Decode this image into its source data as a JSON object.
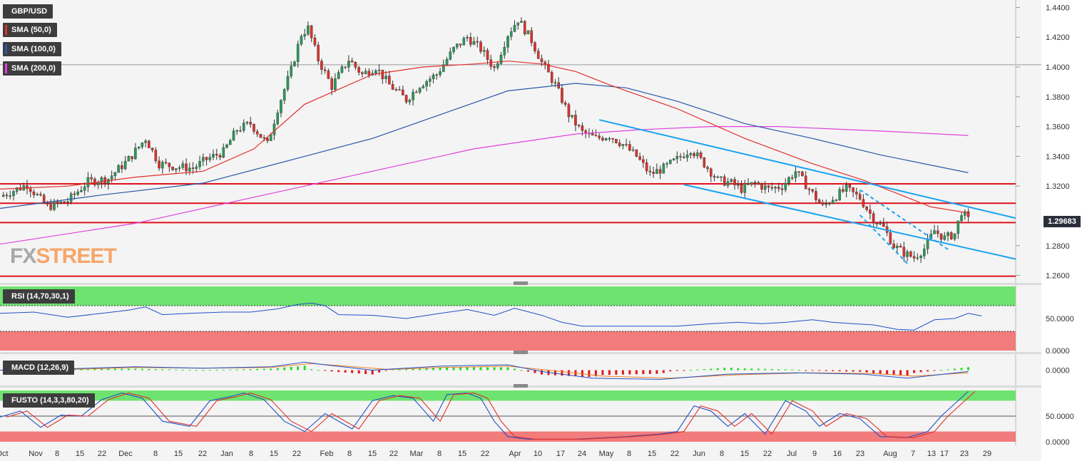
{
  "instrument": "GBP/USD",
  "price_tag": "1.29683",
  "logo": {
    "part1": "FX",
    "part2": "STREET"
  },
  "legend": [
    {
      "label": "GBP/USD",
      "color": "#3d3d3d"
    },
    {
      "label": "SMA (50,0)",
      "color": "#e0302a"
    },
    {
      "label": "SMA (100,0)",
      "color": "#2857a8"
    },
    {
      "label": "SMA (200,0)",
      "color": "#e040e0"
    }
  ],
  "panels": {
    "rsi": {
      "label": "RSI (14,70,30,1)",
      "ticks": [
        "50.0000",
        "0.0000"
      ]
    },
    "macd": {
      "label": "MACD (12,26,9)",
      "ticks": [
        "0.0000"
      ]
    },
    "fusto": {
      "label": "FUSTO (14,3,3,80,20)",
      "ticks": [
        "50.0000",
        "0.0000"
      ]
    }
  },
  "chart_data": {
    "type": "candlestick",
    "ylim": [
      1.255,
      1.445
    ],
    "price_ticks": [
      "1.4400",
      "1.4200",
      "1.4000",
      "1.3800",
      "1.3600",
      "1.3400",
      "1.3200",
      "1.2800",
      "1.2600"
    ],
    "x_tick_labels": [
      "Oct",
      "Nov",
      "8",
      "15",
      "22",
      "Dec",
      "8",
      "15",
      "22",
      "Jan",
      "8",
      "15",
      "22",
      "Feb",
      "8",
      "15",
      "22",
      "Mar",
      "8",
      "15",
      "22",
      "Apr",
      "10",
      "17",
      "24",
      "May",
      "8",
      "15",
      "22",
      "Jun",
      "8",
      "15",
      "22",
      "Jul",
      "9",
      "16",
      "23",
      "Aug",
      "7",
      "13",
      "17",
      "23",
      "29"
    ],
    "horizontal_levels": [
      1.3215,
      1.3085,
      1.2955,
      1.2595
    ],
    "close_path": [
      [
        0,
        1.313
      ],
      [
        8,
        1.321
      ],
      [
        14,
        1.306
      ],
      [
        20,
        1.31
      ],
      [
        26,
        1.323
      ],
      [
        32,
        1.325
      ],
      [
        38,
        1.338
      ],
      [
        43,
        1.352
      ],
      [
        47,
        1.335
      ],
      [
        52,
        1.333
      ],
      [
        57,
        1.332
      ],
      [
        61,
        1.338
      ],
      [
        66,
        1.343
      ],
      [
        70,
        1.358
      ],
      [
        74,
        1.362
      ],
      [
        79,
        1.348
      ],
      [
        82,
        1.372
      ],
      [
        86,
        1.398
      ],
      [
        89,
        1.422
      ],
      [
        91,
        1.426
      ],
      [
        94,
        1.405
      ],
      [
        98,
        1.387
      ],
      [
        103,
        1.405
      ],
      [
        107,
        1.395
      ],
      [
        111,
        1.4
      ],
      [
        115,
        1.388
      ],
      [
        120,
        1.378
      ],
      [
        124,
        1.388
      ],
      [
        129,
        1.395
      ],
      [
        134,
        1.412
      ],
      [
        138,
        1.42
      ],
      [
        142,
        1.412
      ],
      [
        146,
        1.399
      ],
      [
        150,
        1.422
      ],
      [
        153,
        1.432
      ],
      [
        157,
        1.418
      ],
      [
        160,
        1.403
      ],
      [
        164,
        1.388
      ],
      [
        168,
        1.368
      ],
      [
        172,
        1.356
      ],
      [
        176,
        1.352
      ],
      [
        180,
        1.354
      ],
      [
        184,
        1.348
      ],
      [
        188,
        1.34
      ],
      [
        192,
        1.328
      ],
      [
        196,
        1.332
      ],
      [
        200,
        1.338
      ],
      [
        204,
        1.345
      ],
      [
        208,
        1.335
      ],
      [
        212,
        1.324
      ],
      [
        216,
        1.322
      ],
      [
        219,
        1.318
      ],
      [
        223,
        1.322
      ],
      [
        227,
        1.318
      ],
      [
        231,
        1.32
      ],
      [
        235,
        1.33
      ],
      [
        239,
        1.318
      ],
      [
        243,
        1.306
      ],
      [
        246,
        1.312
      ],
      [
        250,
        1.318
      ],
      [
        254,
        1.312
      ],
      [
        258,
        1.298
      ],
      [
        261,
        1.292
      ],
      [
        264,
        1.28
      ],
      [
        267,
        1.275
      ],
      [
        270,
        1.272
      ],
      [
        273,
        1.278
      ],
      [
        276,
        1.29
      ],
      [
        279,
        1.285
      ],
      [
        282,
        1.288
      ],
      [
        284,
        1.303
      ],
      [
        286,
        1.297
      ]
    ],
    "sma50_path": [
      [
        0,
        1.318
      ],
      [
        20,
        1.32
      ],
      [
        40,
        1.326
      ],
      [
        60,
        1.33
      ],
      [
        75,
        1.345
      ],
      [
        90,
        1.375
      ],
      [
        110,
        1.395
      ],
      [
        125,
        1.4
      ],
      [
        140,
        1.402
      ],
      [
        150,
        1.404
      ],
      [
        160,
        1.402
      ],
      [
        170,
        1.397
      ],
      [
        180,
        1.388
      ],
      [
        200,
        1.372
      ],
      [
        220,
        1.352
      ],
      [
        240,
        1.335
      ],
      [
        255,
        1.324
      ],
      [
        265,
        1.315
      ],
      [
        275,
        1.306
      ],
      [
        286,
        1.302
      ]
    ],
    "sma100_path": [
      [
        0,
        1.305
      ],
      [
        30,
        1.314
      ],
      [
        60,
        1.322
      ],
      [
        90,
        1.34
      ],
      [
        110,
        1.352
      ],
      [
        130,
        1.368
      ],
      [
        150,
        1.384
      ],
      [
        170,
        1.389
      ],
      [
        185,
        1.386
      ],
      [
        200,
        1.377
      ],
      [
        220,
        1.362
      ],
      [
        240,
        1.352
      ],
      [
        260,
        1.341
      ],
      [
        286,
        1.329
      ]
    ],
    "sma200_path": [
      [
        0,
        1.281
      ],
      [
        40,
        1.295
      ],
      [
        80,
        1.315
      ],
      [
        110,
        1.33
      ],
      [
        140,
        1.345
      ],
      [
        170,
        1.355
      ],
      [
        190,
        1.358
      ],
      [
        210,
        1.36
      ],
      [
        230,
        1.36
      ],
      [
        260,
        1.357
      ],
      [
        286,
        1.354
      ]
    ],
    "channel_upper": [
      [
        177,
        1.3645
      ],
      [
        300,
        1.2985
      ]
    ],
    "channel_lower": [
      [
        202,
        1.321
      ],
      [
        300,
        1.271
      ]
    ],
    "short_channel_upper": [
      [
        254,
        1.3175
      ],
      [
        280,
        1.2775
      ]
    ],
    "short_channel_lower": [
      [
        254,
        1.3005
      ],
      [
        268,
        1.268
      ]
    ],
    "rsi": {
      "ylim": [
        0,
        100
      ],
      "overbought": 70,
      "oversold": 30,
      "path": [
        [
          0,
          58
        ],
        [
          10,
          60
        ],
        [
          20,
          52
        ],
        [
          30,
          58
        ],
        [
          38,
          63
        ],
        [
          43,
          68
        ],
        [
          48,
          56
        ],
        [
          56,
          58
        ],
        [
          66,
          60
        ],
        [
          74,
          60
        ],
        [
          82,
          65
        ],
        [
          88,
          72
        ],
        [
          92,
          74
        ],
        [
          96,
          70
        ],
        [
          100,
          56
        ],
        [
          110,
          55
        ],
        [
          120,
          50
        ],
        [
          130,
          58
        ],
        [
          138,
          64
        ],
        [
          146,
          55
        ],
        [
          152,
          66
        ],
        [
          160,
          55
        ],
        [
          166,
          44
        ],
        [
          172,
          38
        ],
        [
          180,
          38
        ],
        [
          190,
          38
        ],
        [
          200,
          38
        ],
        [
          210,
          42
        ],
        [
          218,
          44
        ],
        [
          225,
          42
        ],
        [
          232,
          44
        ],
        [
          240,
          48
        ],
        [
          246,
          44
        ],
        [
          252,
          42
        ],
        [
          258,
          40
        ],
        [
          265,
          33
        ],
        [
          270,
          32
        ],
        [
          276,
          48
        ],
        [
          282,
          50
        ],
        [
          286,
          58
        ],
        [
          290,
          54
        ]
      ]
    },
    "macd": {
      "ylim": [
        -0.022,
        0.022
      ],
      "macd_path": [
        [
          0,
          0.0
        ],
        [
          20,
          0.002
        ],
        [
          40,
          0.005
        ],
        [
          60,
          0.003
        ],
        [
          80,
          0.005
        ],
        [
          90,
          0.012
        ],
        [
          96,
          0.008
        ],
        [
          110,
          0.0
        ],
        [
          130,
          0.006
        ],
        [
          150,
          0.008
        ],
        [
          160,
          -0.002
        ],
        [
          175,
          -0.012
        ],
        [
          195,
          -0.014
        ],
        [
          215,
          -0.006
        ],
        [
          235,
          -0.004
        ],
        [
          255,
          -0.006
        ],
        [
          268,
          -0.012
        ],
        [
          286,
          -0.002
        ]
      ],
      "signal_path": [
        [
          0,
          0.0
        ],
        [
          20,
          0.001
        ],
        [
          40,
          0.004
        ],
        [
          60,
          0.003
        ],
        [
          80,
          0.004
        ],
        [
          92,
          0.01
        ],
        [
          100,
          0.007
        ],
        [
          115,
          0.001
        ],
        [
          130,
          0.004
        ],
        [
          150,
          0.006
        ],
        [
          162,
          0.0
        ],
        [
          178,
          -0.009
        ],
        [
          198,
          -0.012
        ],
        [
          218,
          -0.007
        ],
        [
          238,
          -0.004
        ],
        [
          258,
          -0.005
        ],
        [
          270,
          -0.009
        ],
        [
          286,
          -0.004
        ]
      ]
    },
    "fusto": {
      "ylim": [
        0,
        100
      ],
      "overbought": 80,
      "oversold": 20,
      "k_path": [
        [
          0,
          48
        ],
        [
          6,
          60
        ],
        [
          12,
          28
        ],
        [
          18,
          52
        ],
        [
          24,
          50
        ],
        [
          30,
          82
        ],
        [
          36,
          95
        ],
        [
          42,
          85
        ],
        [
          48,
          40
        ],
        [
          56,
          30
        ],
        [
          62,
          80
        ],
        [
          68,
          88
        ],
        [
          72,
          95
        ],
        [
          78,
          82
        ],
        [
          84,
          40
        ],
        [
          90,
          20
        ],
        [
          96,
          55
        ],
        [
          104,
          25
        ],
        [
          110,
          80
        ],
        [
          116,
          90
        ],
        [
          122,
          85
        ],
        [
          128,
          40
        ],
        [
          132,
          92
        ],
        [
          138,
          95
        ],
        [
          142,
          85
        ],
        [
          146,
          40
        ],
        [
          150,
          10
        ],
        [
          156,
          5
        ],
        [
          170,
          5
        ],
        [
          185,
          10
        ],
        [
          195,
          15
        ],
        [
          200,
          20
        ],
        [
          205,
          70
        ],
        [
          210,
          60
        ],
        [
          215,
          30
        ],
        [
          220,
          55
        ],
        [
          226,
          15
        ],
        [
          232,
          80
        ],
        [
          238,
          60
        ],
        [
          242,
          30
        ],
        [
          248,
          55
        ],
        [
          254,
          45
        ],
        [
          260,
          10
        ],
        [
          268,
          8
        ],
        [
          274,
          20
        ],
        [
          278,
          50
        ],
        [
          286,
          98
        ]
      ]
    }
  }
}
